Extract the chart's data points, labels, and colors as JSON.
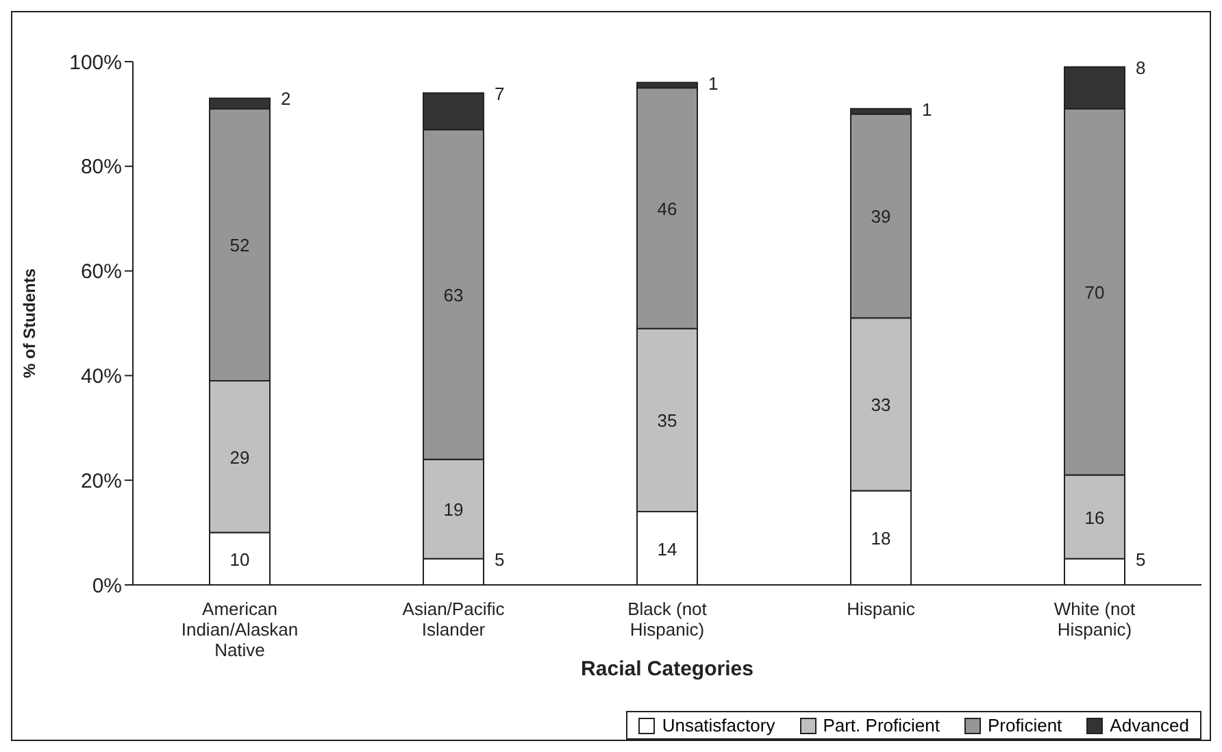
{
  "chart_data": {
    "type": "bar",
    "stacked": true,
    "xlabel": "Racial Categories",
    "ylabel": "% of Students",
    "categories": [
      "American Indian/Alaskan Native",
      "Asian/Pacific Islander",
      "Black (not Hispanic)",
      "Hispanic",
      "White (not Hispanic)"
    ],
    "series": [
      {
        "name": "Unsatisfactory",
        "color": "#ffffff",
        "values": [
          10,
          5,
          14,
          18,
          5
        ]
      },
      {
        "name": "Part. Proficient",
        "color": "#c0c0c0",
        "values": [
          29,
          19,
          35,
          33,
          16
        ]
      },
      {
        "name": "Proficient",
        "color": "#969696",
        "values": [
          52,
          63,
          46,
          39,
          70
        ]
      },
      {
        "name": "Advanced",
        "color": "#333333",
        "values": [
          2,
          7,
          1,
          1,
          8
        ]
      }
    ],
    "ylim": [
      0,
      100
    ],
    "yticks": [
      {
        "value": 0,
        "label": "0%"
      },
      {
        "value": 20,
        "label": "20%"
      },
      {
        "value": 40,
        "label": "40%"
      },
      {
        "value": 60,
        "label": "60%"
      },
      {
        "value": 80,
        "label": "80%"
      },
      {
        "value": 100,
        "label": "100%"
      }
    ],
    "data_labels": true,
    "grid": false,
    "legend": "bottom right"
  }
}
